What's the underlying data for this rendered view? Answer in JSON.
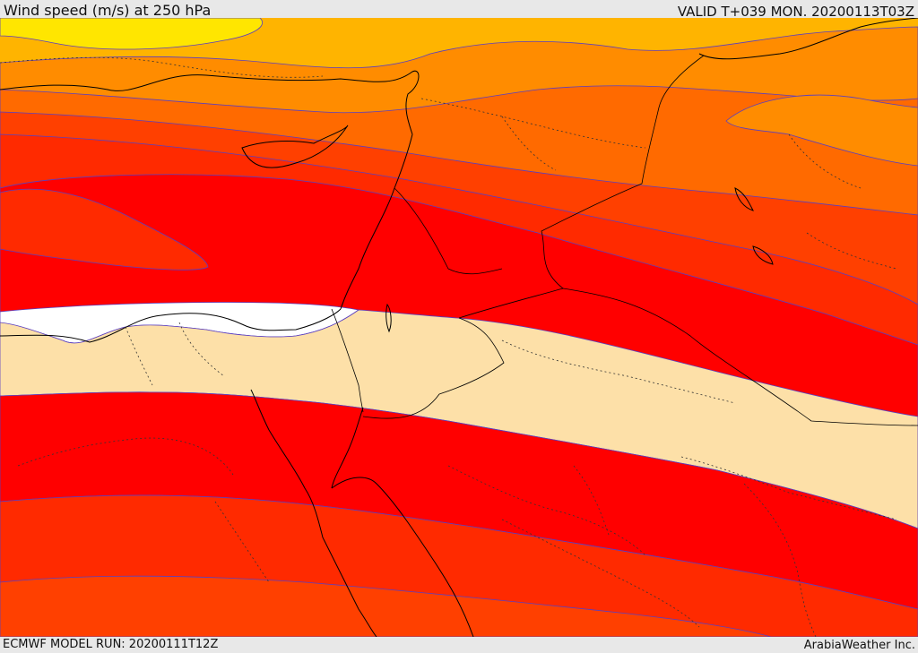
{
  "header": {
    "title": "Wind speed (m/s) at 250 hPa",
    "valid_time": "VALID T+039 MON. 20200113T03Z"
  },
  "footer": {
    "model_run": "ECMWF MODEL RUN: 20200111T12Z",
    "credit": "ArabiaWeather Inc."
  },
  "map": {
    "field": "wind speed at 250 hPa",
    "color_bands": [
      {
        "name": "band-yellow",
        "color": "#ffe600"
      },
      {
        "name": "band-light-orange",
        "color": "#ffb400"
      },
      {
        "name": "band-orange",
        "color": "#ff8c00"
      },
      {
        "name": "band-dark-orange",
        "color": "#ff6a00"
      },
      {
        "name": "band-red-orange",
        "color": "#ff4000"
      },
      {
        "name": "band-scarlet",
        "color": "#ff2a00"
      },
      {
        "name": "band-red",
        "color": "#ff0000"
      },
      {
        "name": "band-tan",
        "color": "#fde0a8"
      },
      {
        "name": "band-white",
        "color": "#ffffff"
      }
    ],
    "contour_line_color": "#5a3fc0",
    "coastline_color": "#000000"
  }
}
